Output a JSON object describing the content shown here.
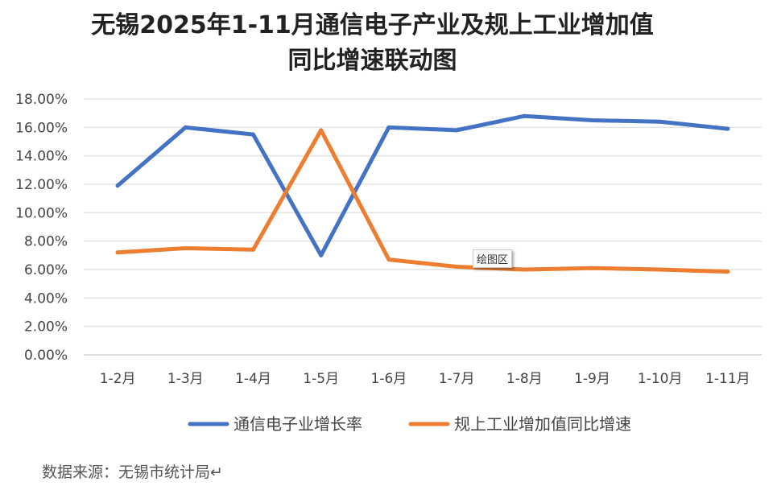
{
  "chart_data": {
    "type": "line",
    "title": "无锡2025年1-11月通信电子产业及规上工业增加值",
    "title_line2": "同比增速联动图",
    "categories": [
      "1-2月",
      "1-3月",
      "1-4月",
      "1-5月",
      "1-6月",
      "1-7月",
      "1-8月",
      "1-9月",
      "1-10月",
      "1-11月"
    ],
    "ylim": [
      0,
      18
    ],
    "yticks": [
      "0.00%",
      "2.00%",
      "4.00%",
      "6.00%",
      "8.00%",
      "10.00%",
      "12.00%",
      "14.00%",
      "16.00%",
      "18.00%"
    ],
    "grid": true,
    "legend_position": "bottom",
    "series": [
      {
        "name": "通信电子业增长率",
        "color": "#4472C4",
        "values": [
          11.9,
          16.0,
          15.5,
          7.0,
          16.0,
          15.8,
          16.8,
          16.5,
          16.4,
          15.9
        ]
      },
      {
        "name": "规上工业增加值同比增速",
        "color": "#ED7D31",
        "values": [
          7.2,
          7.5,
          7.4,
          15.8,
          6.7,
          6.2,
          6.0,
          6.1,
          6.0,
          5.85
        ]
      }
    ]
  },
  "tooltip": "绘图区",
  "source": "数据来源：无锡市统计局↵"
}
